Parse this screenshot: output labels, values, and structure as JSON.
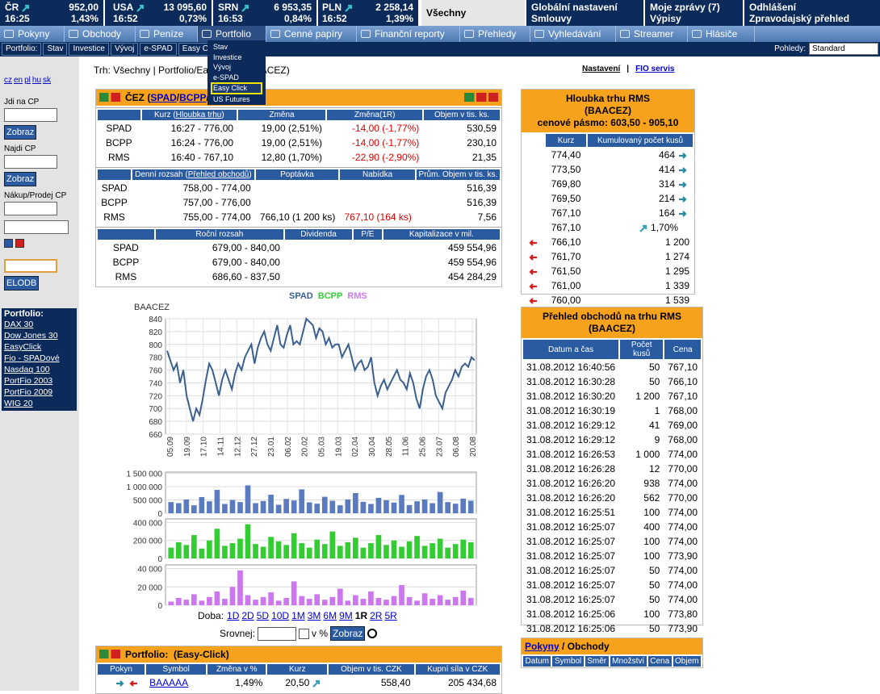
{
  "tickers": [
    {
      "name": "ČR",
      "value": "952,00",
      "time": "16:25",
      "change": "1,43%"
    },
    {
      "name": "USA",
      "value": "13 095,60",
      "time": "16:52",
      "change": "0,73%"
    },
    {
      "name": "SRN",
      "value": "6 953,35",
      "time": "16:53",
      "change": "0,84%"
    },
    {
      "name": "PLN",
      "value": "2 258,14",
      "time": "16:52",
      "change": "1,39%"
    }
  ],
  "top_links": [
    [
      "Všechny"
    ],
    [
      "Globální nastavení",
      "Smlouvy"
    ],
    [
      "Moje zprávy (7)",
      "Výpisy"
    ],
    [
      "Odhlášení",
      "Zpravodajský přehled"
    ]
  ],
  "menu": [
    "Pokyny",
    "Obchody",
    "Peníze",
    "Portfolio",
    "Cenné papíry",
    "Finanční reporty",
    "Přehledy",
    "Vyhledávání",
    "Streamer",
    "Hlásiče"
  ],
  "submenu": {
    "label": "Portfolio:",
    "items": [
      "Stav",
      "Investice",
      "Vývoj",
      "e-SPAD",
      "Easy Cli"
    ],
    "views_label": "Pohledy:",
    "views_value": "Standard"
  },
  "dropdown": [
    "Stav",
    "Investice",
    "Vývoj",
    "e-SPAD",
    "Easy Click",
    "US Futures"
  ],
  "sidebar": {
    "languages": [
      "cz",
      "en",
      "pl",
      "hu",
      "sk"
    ],
    "goto_label": "Jdi na CP",
    "goto_button": "Zobraz",
    "find_label": "Najdi CP",
    "find_button": "Zobraz",
    "trade_label": "Nákup/Prodej CP",
    "elodb_button": "ELODB",
    "portfolio_title": "Portfolio:",
    "portfolios": [
      "DAX 30",
      "Dow Jones 30",
      "EasyClick",
      "Fio - SPADové",
      "Nasdaq 100",
      "PortFio 2003",
      "PortFio 2009",
      "WIG 20"
    ]
  },
  "breadcrumb": "Trh: Všechny | Portfolio/Easy Click (BAACEZ)",
  "top_right": {
    "settings": "Nastavení",
    "separator": "|",
    "service": "FIO servis"
  },
  "stock": {
    "title": [
      "ČEZ (",
      {
        "link": "SPAD"
      },
      "/",
      {
        "link": "BCPP"
      },
      "/",
      {
        "link": "RMS"
      },
      ")"
    ],
    "tables": [
      {
        "header": [
          null,
          [
            "Kurz (",
            {
              "link": "Hloubka trhu"
            },
            ")"
          ],
          "Změna",
          "Změna(1R)",
          "Objem v tis. ks."
        ],
        "rows": [
          [
            "SPAD",
            "16:27 - 776,00",
            "19,00 (2,51%)",
            "-14,00 (-1,77%)",
            "530,59"
          ],
          [
            "BCPP",
            "16:24 - 776,00",
            "19,00 (2,51%)",
            "-14,00 (-1,77%)",
            "230,10"
          ],
          [
            "RMS",
            "16:40 - 767,10",
            "12,80 (1,70%)",
            "-22,90 (-2,90%)",
            "21,35"
          ]
        ]
      },
      {
        "header": [
          null,
          [
            "Denní rozsah (",
            {
              "link": "Přehled obchodů"
            },
            ")"
          ],
          "Poptávka",
          "Nabídka",
          "Prům. Objem v tis. ks."
        ],
        "rows": [
          [
            "SPAD",
            "758,00 - 774,00",
            null,
            null,
            "516,39"
          ],
          [
            "BCPP",
            "757,00 - 776,00",
            null,
            null,
            "516,39"
          ],
          [
            "RMS",
            "755,00 - 774,00",
            "766,10 (1 200 ks)",
            "767,10 (164 ks)",
            "7,56"
          ]
        ]
      },
      {
        "header": [
          null,
          "Roční rozsah",
          "Dividenda",
          "P/E",
          "Kapitalizace v mil."
        ],
        "rows": [
          [
            "SPAD",
            "679,00 - 840,00",
            null,
            null,
            "459 554,96"
          ],
          [
            "BCPP",
            "679,00 - 840,00",
            null,
            null,
            "459 554,96"
          ],
          [
            "RMS",
            "686,60 - 837,50",
            null,
            null,
            "454 284,29"
          ]
        ]
      }
    ]
  },
  "chart": {
    "type": "line",
    "ylabel": "BAACEZ",
    "legend": [
      {
        "name": "SPAD",
        "color": "#3b5f8f"
      },
      {
        "name": "BCPP",
        "color": "#33cc33"
      },
      {
        "name": "RMS",
        "color": "#cc77ee"
      }
    ],
    "ylim": [
      660,
      840
    ],
    "yticks": [
      660,
      680,
      700,
      720,
      740,
      760,
      780,
      800,
      820,
      840
    ],
    "x_labels": [
      "05.09",
      "19.09",
      "17.10",
      "14.11",
      "12.12",
      "27.12",
      "23.01",
      "06.02",
      "20.02",
      "05.03",
      "19.03",
      "02.04",
      "30.04",
      "28.05",
      "11.06",
      "25.06",
      "23.07",
      "06.08",
      "20.08"
    ],
    "series": [
      {
        "name": "SPAD",
        "color": "#3b5f8f",
        "values": [
          790,
          775,
          760,
          770,
          740,
          760,
          720,
          700,
          680,
          700,
          690,
          715,
          745,
          770,
          760,
          740,
          720,
          745,
          760,
          745,
          730,
          755,
          770,
          760,
          780,
          790,
          800,
          770,
          795,
          810,
          820,
          800,
          790,
          810,
          830,
          800,
          795,
          815,
          830,
          800,
          805,
          800,
          820,
          840,
          835,
          830,
          810,
          825,
          820,
          800,
          810,
          795,
          800,
          800,
          780,
          790,
          800,
          780,
          760,
          770,
          775,
          760,
          765,
          780,
          740,
          720,
          735,
          745,
          730,
          740,
          750,
          760,
          745,
          740,
          730,
          755,
          740,
          715,
          700,
          730,
          750,
          760,
          745,
          720,
          710,
          700,
          725,
          735,
          745,
          760,
          750,
          765,
          770,
          765,
          780,
          775
        ]
      }
    ],
    "volume": [
      {
        "color": "#5b7bc0",
        "ylim": [
          0,
          1550000
        ],
        "yticks": [
          0,
          {
            "value": 500000,
            "label": "500 000"
          },
          {
            "value": 1000000,
            "label": "1 000 000"
          },
          {
            "value": 1500000,
            "label": "1 500 000"
          }
        ],
        "values": [
          420000,
          380000,
          520000,
          300000,
          610000,
          450000,
          880000,
          350000,
          500000,
          420000,
          1050000,
          380000,
          460000,
          700000,
          320000,
          540000,
          480000,
          900000,
          410000,
          360000,
          620000,
          470000,
          300000,
          520000,
          760000,
          430000,
          350000,
          580000,
          490000,
          400000,
          690000,
          310000,
          450000,
          520000,
          380000,
          800000,
          420000,
          360000,
          550000,
          470000
        ]
      },
      {
        "color": "#33cc33",
        "ylim": [
          0,
          440000
        ],
        "yticks": [
          0,
          {
            "value": 200000,
            "label": "200 000"
          },
          {
            "value": 400000,
            "label": "400 000"
          }
        ],
        "values": [
          120000,
          180000,
          150000,
          260000,
          110000,
          200000,
          330000,
          140000,
          170000,
          220000,
          380000,
          160000,
          130000,
          240000,
          190000,
          150000,
          280000,
          170000,
          120000,
          210000,
          160000,
          300000,
          140000,
          180000,
          230000,
          120000,
          170000,
          260000,
          150000,
          200000,
          130000,
          190000,
          250000,
          140000,
          170000,
          220000,
          120000,
          160000,
          210000,
          180000
        ]
      },
      {
        "color": "#cc77ee",
        "ylim": [
          0,
          44000
        ],
        "yticks": [
          0,
          {
            "value": 20000,
            "label": "20 000"
          },
          {
            "value": 40000,
            "label": "40 000"
          }
        ],
        "values": [
          4000,
          8000,
          6000,
          12000,
          5000,
          9000,
          15000,
          7000,
          20000,
          38000,
          11000,
          6000,
          9000,
          14000,
          5000,
          8000,
          26000,
          10000,
          7000,
          12000,
          6000,
          9000,
          18000,
          5000,
          11000,
          7000,
          15000,
          8000,
          6000,
          10000,
          22000,
          9000,
          5000,
          13000,
          7000,
          11000,
          6000,
          9000,
          16000,
          8000
        ]
      }
    ]
  },
  "period": {
    "label": "Doba:",
    "options": [
      "1D",
      "2D",
      "5D",
      "10D",
      "1M",
      "3M",
      "6M",
      "9M",
      "1R",
      "2R",
      "5R"
    ],
    "active": "1R",
    "compare_label": "Srovnej:",
    "percent_label": "v %",
    "button": "Zobraz"
  },
  "depth": {
    "title": [
      "Hloubka trhu RMS",
      "(BAACEZ)",
      "cenové pásmo: 603,50 - 905,10"
    ],
    "header": [
      "Kurz",
      "Kumulovaný počet kusů"
    ],
    "asks": [
      [
        "774,40",
        "464"
      ],
      [
        "773,50",
        "414"
      ],
      [
        "769,80",
        "314"
      ],
      [
        "769,50",
        "214"
      ],
      [
        "767,10",
        "164"
      ]
    ],
    "last": [
      "767,10",
      "1,70%"
    ],
    "bids": [
      [
        "766,10",
        "1 200"
      ],
      [
        "761,70",
        "1 274"
      ],
      [
        "761,50",
        "1 295"
      ],
      [
        "761,00",
        "1 339"
      ],
      [
        "760,00",
        "1 539"
      ]
    ]
  },
  "trades": {
    "title": [
      "Přehled obchodů na trhu RMS",
      "(BAACEZ)"
    ],
    "header": [
      "Datum a čas",
      "Počet kusů",
      "Cena"
    ],
    "rows": [
      [
        "31.08.2012 16:40:56",
        "50",
        "767,10"
      ],
      [
        "31.08.2012 16:30:28",
        "50",
        "766,10"
      ],
      [
        "31.08.2012 16:30:20",
        "1 200",
        "767,10"
      ],
      [
        "31.08.2012 16:30:19",
        "1",
        "768,00"
      ],
      [
        "31.08.2012 16:29:12",
        "41",
        "769,00"
      ],
      [
        "31.08.2012 16:29:12",
        "9",
        "768,00"
      ],
      [
        "31.08.2012 16:26:53",
        "1 000",
        "774,00"
      ],
      [
        "31.08.2012 16:26:28",
        "12",
        "770,00"
      ],
      [
        "31.08.2012 16:26:20",
        "938",
        "774,00"
      ],
      [
        "31.08.2012 16:26:20",
        "562",
        "770,00"
      ],
      [
        "31.08.2012 16:25:51",
        "100",
        "774,00"
      ],
      [
        "31.08.2012 16:25:07",
        "400",
        "774,00"
      ],
      [
        "31.08.2012 16:25:07",
        "100",
        "774,00"
      ],
      [
        "31.08.2012 16:25:07",
        "100",
        "773,90"
      ],
      [
        "31.08.2012 16:25:07",
        "50",
        "774,00"
      ],
      [
        "31.08.2012 16:25:07",
        "50",
        "774,00"
      ],
      [
        "31.08.2012 16:25:07",
        "50",
        "774,00"
      ],
      [
        "31.08.2012 16:25:06",
        "100",
        "773,80"
      ],
      [
        "31.08.2012 16:25:06",
        "50",
        "773,90"
      ],
      [
        "31.08.2012 16:25:06",
        "32",
        "773,50"
      ]
    ]
  },
  "orders": {
    "title": [
      {
        "link": "Pokyny"
      },
      " / Obchody"
    ],
    "header": [
      "Datum",
      "Symbol",
      "Směr",
      "Množství",
      "Cena",
      "Objem"
    ]
  },
  "portfolio": {
    "title": "Portfolio:  (Easy-Click)",
    "header": [
      "Pokyn",
      "Symbol",
      "Změna v %",
      "Kurz",
      "Objem v tis. CZK",
      "Kupní síla v CZK"
    ],
    "rows": [
      [
        null,
        {
          "link": "BAAAAA"
        },
        "1,49%",
        "20,50",
        "558,40",
        "205 434,68"
      ]
    ]
  }
}
